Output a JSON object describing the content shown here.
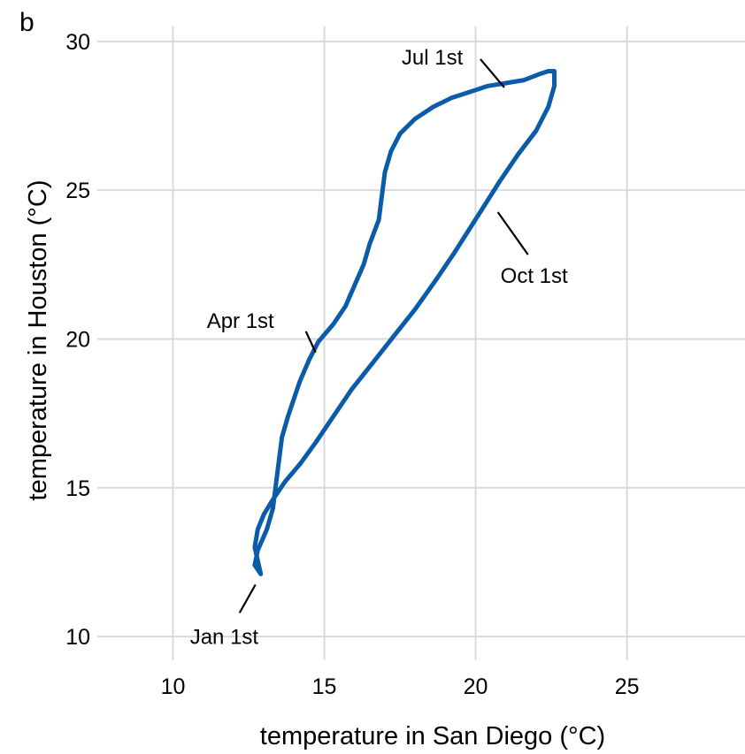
{
  "panel_label": "b",
  "chart_data": {
    "type": "line",
    "title": "",
    "xlabel": "temperature in San Diego (°C)",
    "ylabel": "temperature in Houston (°C)",
    "xlim": [
      7.5,
      28.9
    ],
    "ylim": [
      9.2,
      30.5
    ],
    "x_ticks": [
      10,
      15,
      20,
      25
    ],
    "y_ticks": [
      10,
      15,
      20,
      25,
      30
    ],
    "grid": true,
    "color": "#0a5ba8",
    "series": [
      {
        "x": [
          12.9,
          12.7,
          12.8,
          13.1,
          13.3,
          13.4,
          13.5,
          13.6,
          13.8,
          14.0,
          14.2,
          14.5,
          14.8,
          15.3,
          15.7,
          16.0,
          16.3,
          16.5,
          16.8,
          16.9,
          17.0,
          17.2,
          17.5,
          18.0,
          18.6,
          19.2,
          19.8,
          20.4,
          21.0,
          21.6,
          22.1,
          22.4,
          22.6,
          22.6,
          22.4,
          22.0,
          21.4,
          20.8,
          20.3,
          19.8,
          19.3,
          18.7,
          18.0,
          17.3,
          16.6,
          15.9,
          15.3,
          14.7,
          14.2,
          13.7,
          13.3,
          13.0,
          12.8,
          12.7,
          12.9
        ],
        "y": [
          12.1,
          12.4,
          12.9,
          13.6,
          14.3,
          15.1,
          15.9,
          16.7,
          17.4,
          18.0,
          18.6,
          19.3,
          19.9,
          20.5,
          21.1,
          21.8,
          22.5,
          23.2,
          24.0,
          24.8,
          25.6,
          26.3,
          26.9,
          27.4,
          27.8,
          28.1,
          28.3,
          28.5,
          28.6,
          28.7,
          28.9,
          29.0,
          29.0,
          28.5,
          27.8,
          27.0,
          26.2,
          25.3,
          24.5,
          23.7,
          22.9,
          22.0,
          21.0,
          20.1,
          19.2,
          18.3,
          17.4,
          16.5,
          15.8,
          15.2,
          14.6,
          14.1,
          13.6,
          13.0,
          12.1
        ]
      }
    ],
    "annotations": [
      {
        "text": "Jan 1st",
        "x": 12.9,
        "y": 12.1
      },
      {
        "text": "Apr 1st",
        "x": 14.8,
        "y": 19.9
      },
      {
        "text": "Jul 1st",
        "x": 20.8,
        "y": 28.6
      },
      {
        "text": "Oct 1st",
        "x": 20.5,
        "y": 24.5
      }
    ]
  }
}
